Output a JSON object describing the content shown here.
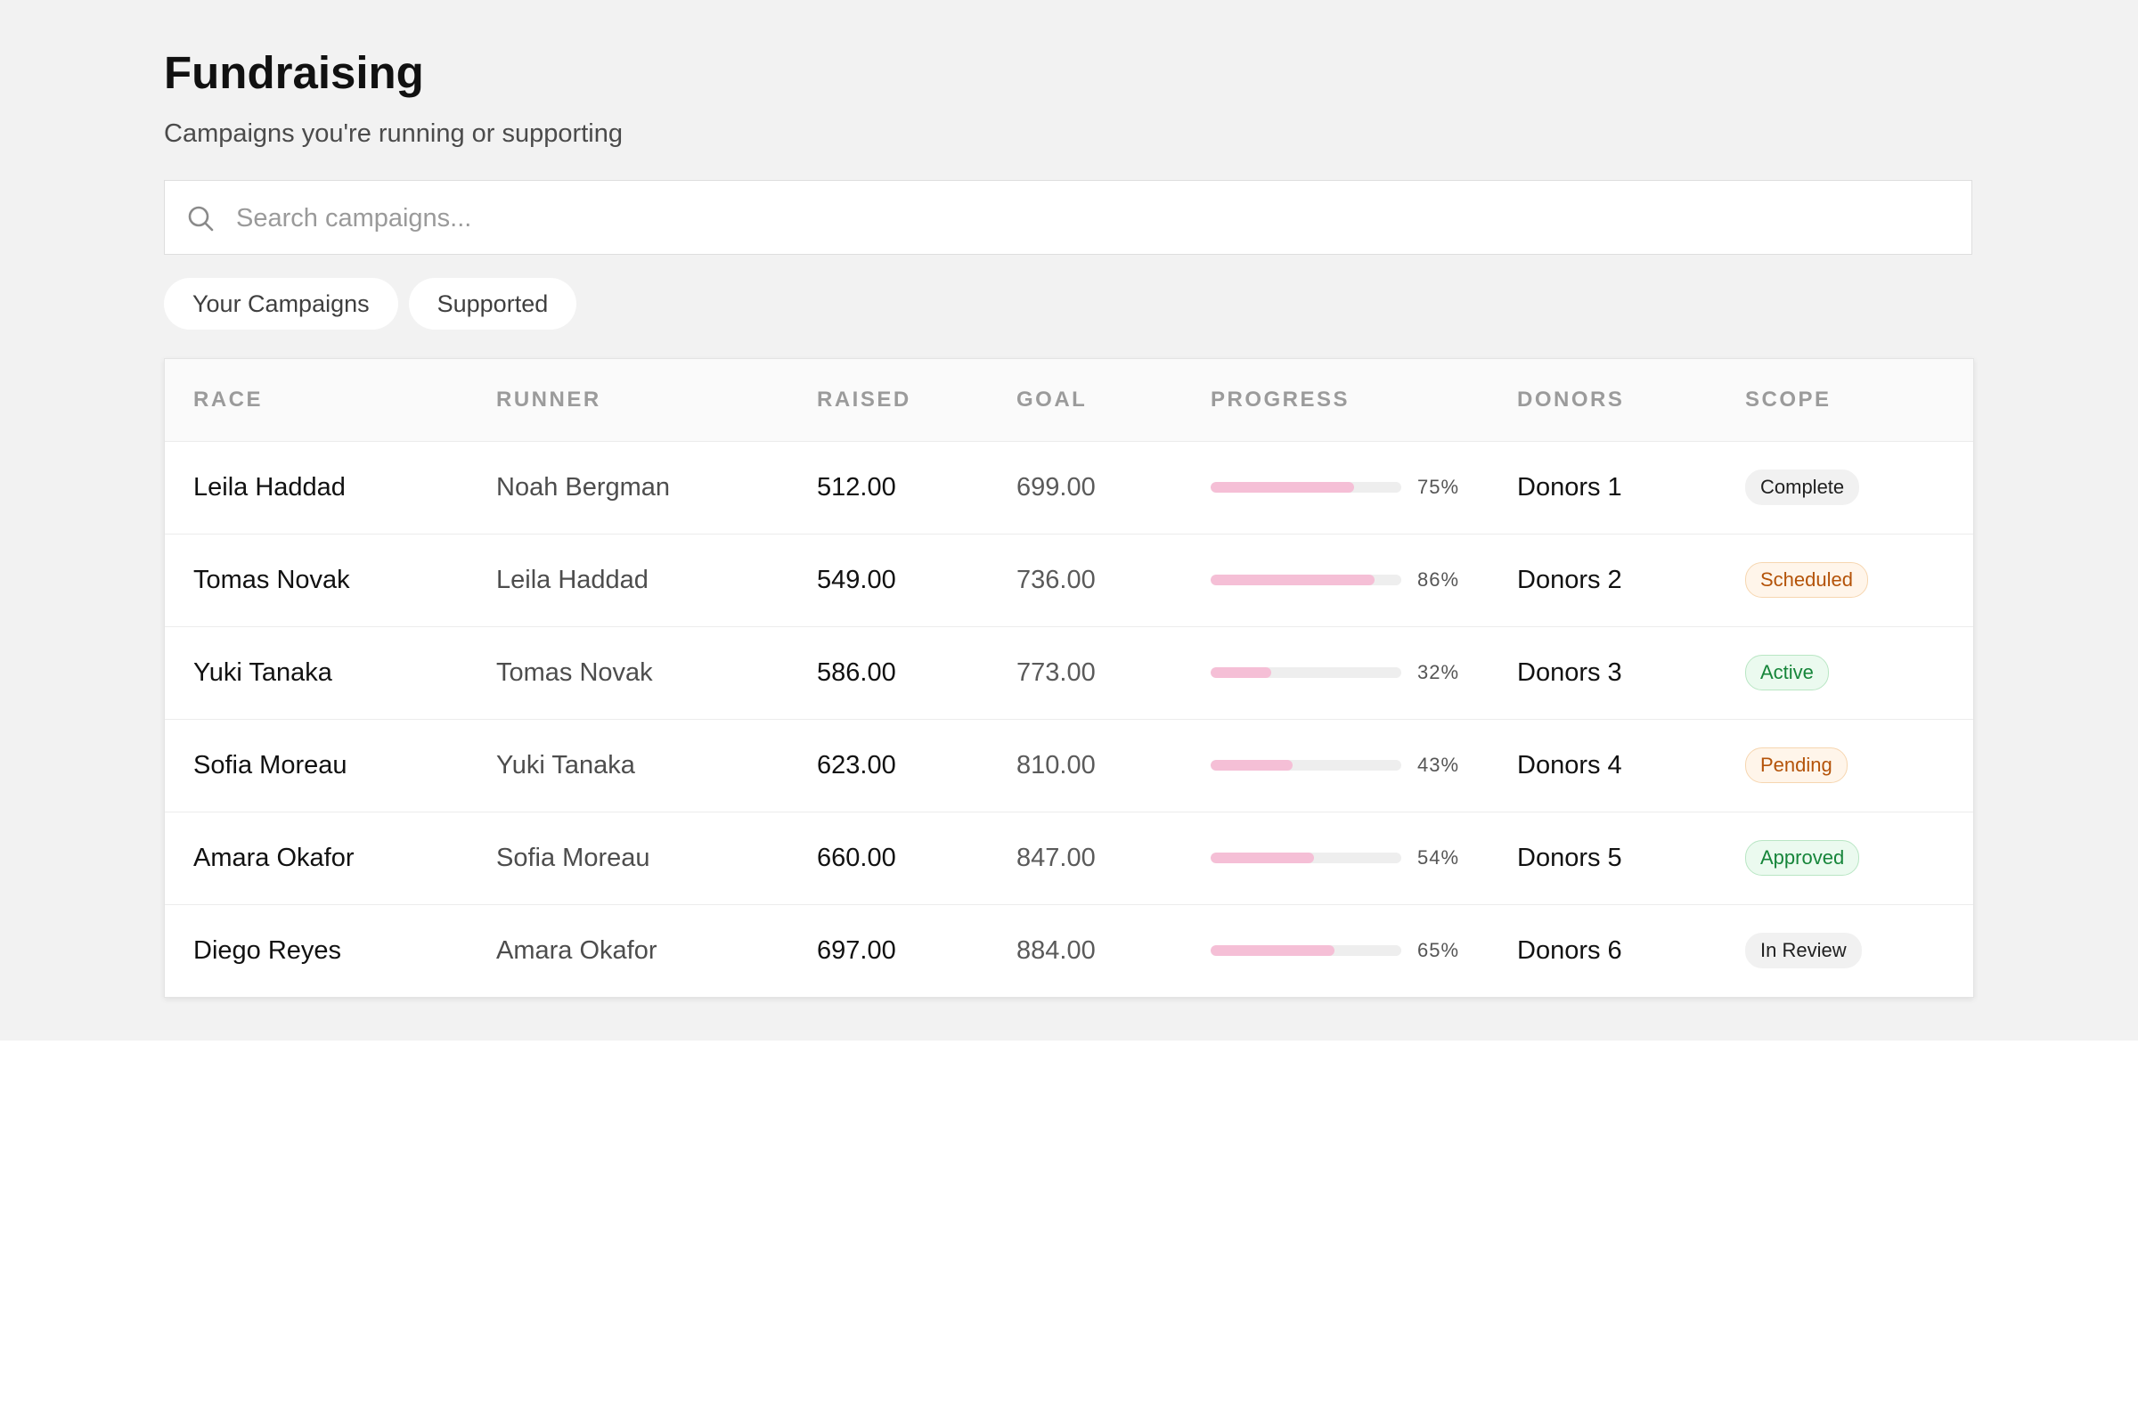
{
  "header": {
    "title": "Fundraising",
    "subtitle": "Campaigns you're running or supporting"
  },
  "search": {
    "placeholder": "Search campaigns..."
  },
  "tabs": [
    {
      "label": "Your Campaigns"
    },
    {
      "label": "Supported"
    }
  ],
  "table": {
    "columns": [
      "RACE",
      "RUNNER",
      "RAISED",
      "GOAL",
      "PROGRESS",
      "DONORS",
      "SCOPE"
    ],
    "rows": [
      {
        "race": "Leila Haddad",
        "runner": "Noah Bergman",
        "raised": "512.00",
        "goal": "699.00",
        "progress": 75,
        "progress_label": "75%",
        "donors": "Donors 1",
        "scope": "Complete",
        "scope_style": "neutral"
      },
      {
        "race": "Tomas Novak",
        "runner": "Leila Haddad",
        "raised": "549.00",
        "goal": "736.00",
        "progress": 86,
        "progress_label": "86%",
        "donors": "Donors 2",
        "scope": "Scheduled",
        "scope_style": "orange"
      },
      {
        "race": "Yuki Tanaka",
        "runner": "Tomas Novak",
        "raised": "586.00",
        "goal": "773.00",
        "progress": 32,
        "progress_label": "32%",
        "donors": "Donors 3",
        "scope": "Active",
        "scope_style": "green"
      },
      {
        "race": "Sofia Moreau",
        "runner": "Yuki Tanaka",
        "raised": "623.00",
        "goal": "810.00",
        "progress": 43,
        "progress_label": "43%",
        "donors": "Donors 4",
        "scope": "Pending",
        "scope_style": "orange"
      },
      {
        "race": "Amara Okafor",
        "runner": "Sofia Moreau",
        "raised": "660.00",
        "goal": "847.00",
        "progress": 54,
        "progress_label": "54%",
        "donors": "Donors 5",
        "scope": "Approved",
        "scope_style": "green"
      },
      {
        "race": "Diego Reyes",
        "runner": "Amara Okafor",
        "raised": "697.00",
        "goal": "884.00",
        "progress": 65,
        "progress_label": "65%",
        "donors": "Donors 6",
        "scope": "In Review",
        "scope_style": "neutral"
      }
    ]
  },
  "colors": {
    "page_background": "#f2f2f2",
    "progress_fill": "#f5bfd6",
    "progress_track": "#eeeeee",
    "badge_orange": "#b45309",
    "badge_green": "#16853a"
  },
  "icons": {
    "search": "search-icon"
  }
}
